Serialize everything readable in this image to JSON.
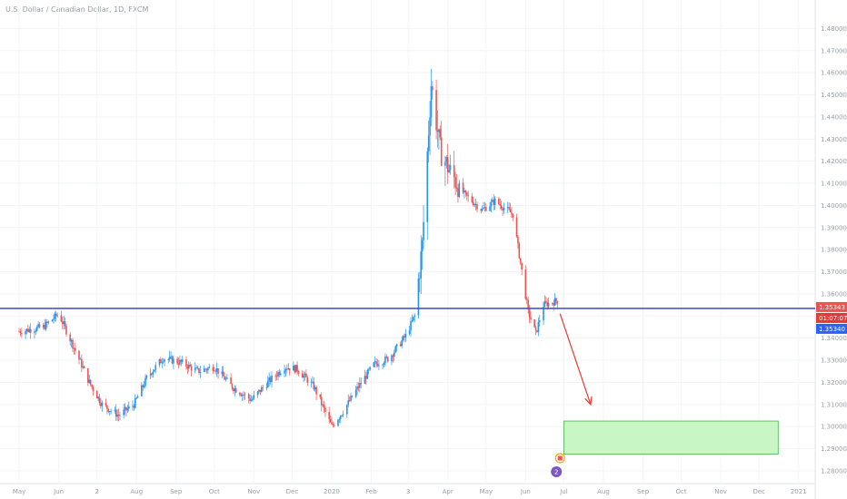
{
  "chart_data": {
    "type": "candlestick",
    "title": "U.S. Dollar / Canadian Dollar, 1D, FXCM",
    "x_labels": [
      "May",
      "Jun",
      "2",
      "Aug",
      "Sep",
      "Oct",
      "Nov",
      "Dec",
      "2020",
      "Feb",
      "3",
      "Apr",
      "May",
      "Jun",
      "Jul",
      "Aug",
      "Sep",
      "Oct",
      "Nov",
      "Dec",
      "2021"
    ],
    "y_ticks": [
      "1.48000",
      "1.47000",
      "1.46000",
      "1.45000",
      "1.44000",
      "1.43000",
      "1.42000",
      "1.41000",
      "1.40000",
      "1.39000",
      "1.38000",
      "1.37000",
      "1.36000",
      "1.35000",
      "1.34000",
      "1.33000",
      "1.32000",
      "1.31000",
      "1.30000",
      "1.29000",
      "1.28000"
    ],
    "ylim": [
      1.2775,
      1.4855
    ],
    "price_points": [
      [
        "2019-05-01",
        1.343
      ],
      [
        "2019-05-20",
        1.345
      ],
      [
        "2019-06-01",
        1.351
      ],
      [
        "2019-06-12",
        1.337
      ],
      [
        "2019-06-25",
        1.32
      ],
      [
        "2019-07-05",
        1.31
      ],
      [
        "2019-07-18",
        1.305
      ],
      [
        "2019-07-30",
        1.31
      ],
      [
        "2019-08-10",
        1.323
      ],
      [
        "2019-08-22",
        1.331
      ],
      [
        "2019-09-05",
        1.329
      ],
      [
        "2019-09-18",
        1.325
      ],
      [
        "2019-10-01",
        1.327
      ],
      [
        "2019-10-15",
        1.318
      ],
      [
        "2019-10-30",
        1.312
      ],
      [
        "2019-11-12",
        1.32
      ],
      [
        "2019-11-25",
        1.327
      ],
      [
        "2019-12-05",
        1.326
      ],
      [
        "2019-12-18",
        1.318
      ],
      [
        "2020-01-01",
        1.3
      ],
      [
        "2020-01-10",
        1.307
      ],
      [
        "2020-01-22",
        1.318
      ],
      [
        "2020-02-03",
        1.328
      ],
      [
        "2020-02-15",
        1.331
      ],
      [
        "2020-02-28",
        1.341
      ],
      [
        "2020-03-06",
        1.35
      ],
      [
        "2020-03-12",
        1.382
      ],
      [
        "2020-03-19",
        1.455
      ],
      [
        "2020-03-26",
        1.425
      ],
      [
        "2020-04-03",
        1.415
      ],
      [
        "2020-04-14",
        1.405
      ],
      [
        "2020-04-28",
        1.398
      ],
      [
        "2020-05-08",
        1.402
      ],
      [
        "2020-05-22",
        1.396
      ],
      [
        "2020-06-03",
        1.352
      ],
      [
        "2020-06-09",
        1.342
      ],
      [
        "2020-06-15",
        1.355
      ],
      [
        "2020-06-26",
        1.357
      ]
    ],
    "horizontal_line": 1.35343,
    "price_labels": [
      "1.35343",
      "01:07:07",
      "1.35340"
    ],
    "target_zone": {
      "from": "2020-07-01",
      "to": "2020-12-16",
      "low": 1.2875,
      "high": 1.3025
    },
    "arrow": {
      "from_date": "2020-06-28",
      "from_price": 1.351,
      "to_date": "2020-07-22",
      "to_price": 1.31
    },
    "event_badge_count": "2",
    "colors": {
      "up": "#2196f3",
      "down": "#ef5350",
      "line": "#4a57c6",
      "zone_fill": "#c8f7c5",
      "zone_border": "#4caf50",
      "arrow": "#e53935",
      "badge_last": "#ef5350",
      "badge_countdown": "#e53935",
      "badge_bid": "#2962ff"
    }
  }
}
